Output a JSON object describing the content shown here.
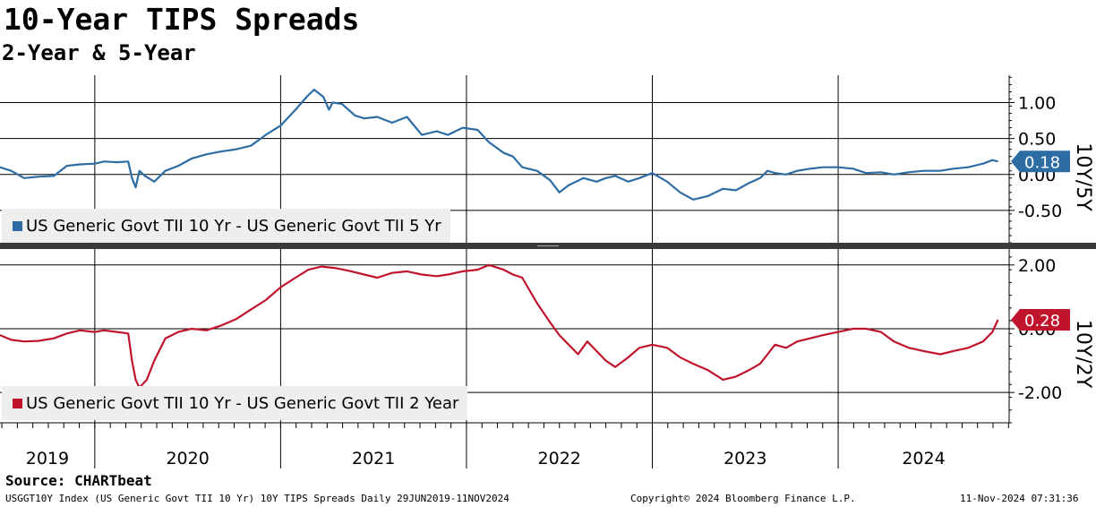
{
  "header": {
    "title": "10-Year TIPS Spreads",
    "subtitle": "2-Year & 5-Year"
  },
  "footer": {
    "source": "Source: CHARTbeat",
    "ticker_info": "USGGT10Y Index (US Generic Govt TII 10 Yr) 10Y TIPS Spreads  Daily 29JUN2019-11NOV2024",
    "copyright": "Copyright© 2024 Bloomberg Finance L.P.",
    "timestamp": "11-Nov-2024 07:31:36"
  },
  "colors": {
    "series_5y": "#2e6da4",
    "series_2y": "#c0142d",
    "grid": "#000000"
  },
  "chart_data": [
    {
      "type": "line",
      "panel": "top",
      "axis_title": "10Y/5Y",
      "ylim": [
        -0.95,
        1.38
      ],
      "yticks": [
        1.0,
        0.5,
        0.0,
        -0.5
      ],
      "ytick_labels": [
        "1.00",
        "0.50",
        "0.00",
        "-0.50"
      ],
      "last_value": 0.18,
      "last_value_label": "0.18",
      "legend": "US Generic Govt TII 10 Yr - US Generic Govt TII 5 Yr",
      "series": [
        {
          "name": "US Generic Govt TII 10 Yr - US Generic Govt TII 5 Yr",
          "x": [
            2019.49,
            2019.55,
            2019.62,
            2019.7,
            2019.78,
            2019.85,
            2019.92,
            2020.0,
            2020.05,
            2020.12,
            2020.18,
            2020.2,
            2020.22,
            2020.24,
            2020.27,
            2020.32,
            2020.38,
            2020.45,
            2020.52,
            2020.6,
            2020.68,
            2020.76,
            2020.84,
            2020.92,
            2021.0,
            2021.08,
            2021.14,
            2021.18,
            2021.2,
            2021.23,
            2021.26,
            2021.28,
            2021.33,
            2021.4,
            2021.45,
            2021.52,
            2021.6,
            2021.68,
            2021.76,
            2021.84,
            2021.9,
            2021.98,
            2022.06,
            2022.12,
            2022.2,
            2022.25,
            2022.3,
            2022.38,
            2022.45,
            2022.5,
            2022.55,
            2022.63,
            2022.7,
            2022.75,
            2022.8,
            2022.87,
            2022.93,
            2023.0,
            2023.08,
            2023.15,
            2023.22,
            2023.3,
            2023.38,
            2023.45,
            2023.52,
            2023.58,
            2023.62,
            2023.66,
            2023.72,
            2023.78,
            2023.85,
            2023.92,
            2024.0,
            2024.08,
            2024.15,
            2024.23,
            2024.3,
            2024.38,
            2024.46,
            2024.55,
            2024.62,
            2024.7,
            2024.78,
            2024.83,
            2024.86
          ],
          "y": [
            0.1,
            0.05,
            -0.05,
            -0.03,
            -0.02,
            0.12,
            0.14,
            0.15,
            0.18,
            0.17,
            0.18,
            -0.05,
            -0.18,
            0.05,
            -0.02,
            -0.1,
            0.05,
            0.12,
            0.22,
            0.28,
            0.32,
            0.35,
            0.4,
            0.55,
            0.68,
            0.9,
            1.08,
            1.18,
            1.14,
            1.08,
            0.9,
            1.0,
            0.98,
            0.82,
            0.78,
            0.8,
            0.72,
            0.8,
            0.55,
            0.6,
            0.55,
            0.65,
            0.62,
            0.45,
            0.3,
            0.25,
            0.1,
            0.05,
            -0.08,
            -0.25,
            -0.15,
            -0.05,
            -0.1,
            -0.05,
            -0.02,
            -0.1,
            -0.05,
            0.02,
            -0.1,
            -0.25,
            -0.35,
            -0.3,
            -0.2,
            -0.22,
            -0.12,
            -0.05,
            0.05,
            0.02,
            0.0,
            0.05,
            0.08,
            0.1,
            0.1,
            0.08,
            0.02,
            0.03,
            0.0,
            0.03,
            0.05,
            0.05,
            0.08,
            0.1,
            0.15,
            0.2,
            0.18
          ]
        }
      ]
    },
    {
      "type": "line",
      "panel": "bottom",
      "axis_title": "10Y/2Y",
      "ylim": [
        -2.95,
        2.5
      ],
      "yticks": [
        2.0,
        0.0,
        -2.0
      ],
      "ytick_labels": [
        "2.00",
        "0.00",
        "-2.00"
      ],
      "last_value": 0.28,
      "last_value_label": "0.28",
      "legend": "US Generic Govt TII 10 Yr - US Generic Govt TII 2 Year",
      "series": [
        {
          "name": "US Generic Govt TII 10 Yr - US Generic Govt TII 2 Year",
          "x": [
            2019.49,
            2019.55,
            2019.62,
            2019.7,
            2019.78,
            2019.85,
            2019.92,
            2020.0,
            2020.05,
            2020.12,
            2020.18,
            2020.2,
            2020.22,
            2020.24,
            2020.28,
            2020.32,
            2020.38,
            2020.45,
            2020.52,
            2020.6,
            2020.68,
            2020.76,
            2020.84,
            2020.92,
            2021.0,
            2021.08,
            2021.15,
            2021.22,
            2021.3,
            2021.38,
            2021.45,
            2021.52,
            2021.6,
            2021.68,
            2021.76,
            2021.84,
            2021.9,
            2021.98,
            2022.06,
            2022.12,
            2022.2,
            2022.25,
            2022.3,
            2022.38,
            2022.45,
            2022.5,
            2022.55,
            2022.6,
            2022.65,
            2022.7,
            2022.75,
            2022.8,
            2022.87,
            2022.93,
            2023.0,
            2023.08,
            2023.15,
            2023.22,
            2023.3,
            2023.38,
            2023.45,
            2023.52,
            2023.58,
            2023.62,
            2023.66,
            2023.72,
            2023.78,
            2023.85,
            2023.92,
            2024.0,
            2024.08,
            2024.15,
            2024.23,
            2024.3,
            2024.38,
            2024.46,
            2024.55,
            2024.62,
            2024.7,
            2024.78,
            2024.83,
            2024.86
          ],
          "y": [
            -0.2,
            -0.35,
            -0.4,
            -0.38,
            -0.3,
            -0.15,
            -0.05,
            -0.1,
            -0.05,
            -0.1,
            -0.15,
            -1.0,
            -1.6,
            -1.85,
            -1.6,
            -1.0,
            -0.3,
            -0.1,
            0.0,
            -0.05,
            0.1,
            0.3,
            0.6,
            0.9,
            1.3,
            1.6,
            1.85,
            1.95,
            1.9,
            1.8,
            1.7,
            1.6,
            1.75,
            1.8,
            1.7,
            1.65,
            1.7,
            1.8,
            1.85,
            2.0,
            1.85,
            1.7,
            1.6,
            0.8,
            0.2,
            -0.2,
            -0.5,
            -0.8,
            -0.4,
            -0.7,
            -1.0,
            -1.2,
            -0.9,
            -0.6,
            -0.5,
            -0.6,
            -0.9,
            -1.1,
            -1.3,
            -1.6,
            -1.5,
            -1.3,
            -1.1,
            -0.8,
            -0.5,
            -0.6,
            -0.4,
            -0.3,
            -0.2,
            -0.1,
            0.0,
            0.0,
            -0.1,
            -0.4,
            -0.6,
            -0.7,
            -0.8,
            -0.7,
            -0.6,
            -0.4,
            -0.1,
            0.28
          ]
        }
      ]
    }
  ],
  "x_axis": {
    "labels": [
      "2019",
      "2020",
      "2021",
      "2022",
      "2023",
      "2024"
    ],
    "range": [
      2019.49,
      2024.92
    ]
  }
}
